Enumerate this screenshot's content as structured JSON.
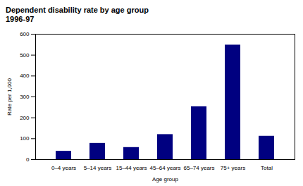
{
  "chart_data": {
    "type": "bar",
    "title": "Dependent disability rate by age group",
    "subtitle": "1996-97",
    "categories": [
      "0–4 years",
      "5–14 years",
      "15–44 years",
      "45–64 years",
      "65–74 years",
      "75+ years",
      "Total"
    ],
    "values": [
      40,
      78,
      58,
      120,
      253,
      548,
      112
    ],
    "color": "#000080",
    "xlabel": "Age group",
    "ylabel": "Rate per 1,000",
    "ylim": [
      0,
      600
    ],
    "yticks": [
      0,
      100,
      200,
      300,
      400,
      500,
      600
    ],
    "grid": false
  }
}
